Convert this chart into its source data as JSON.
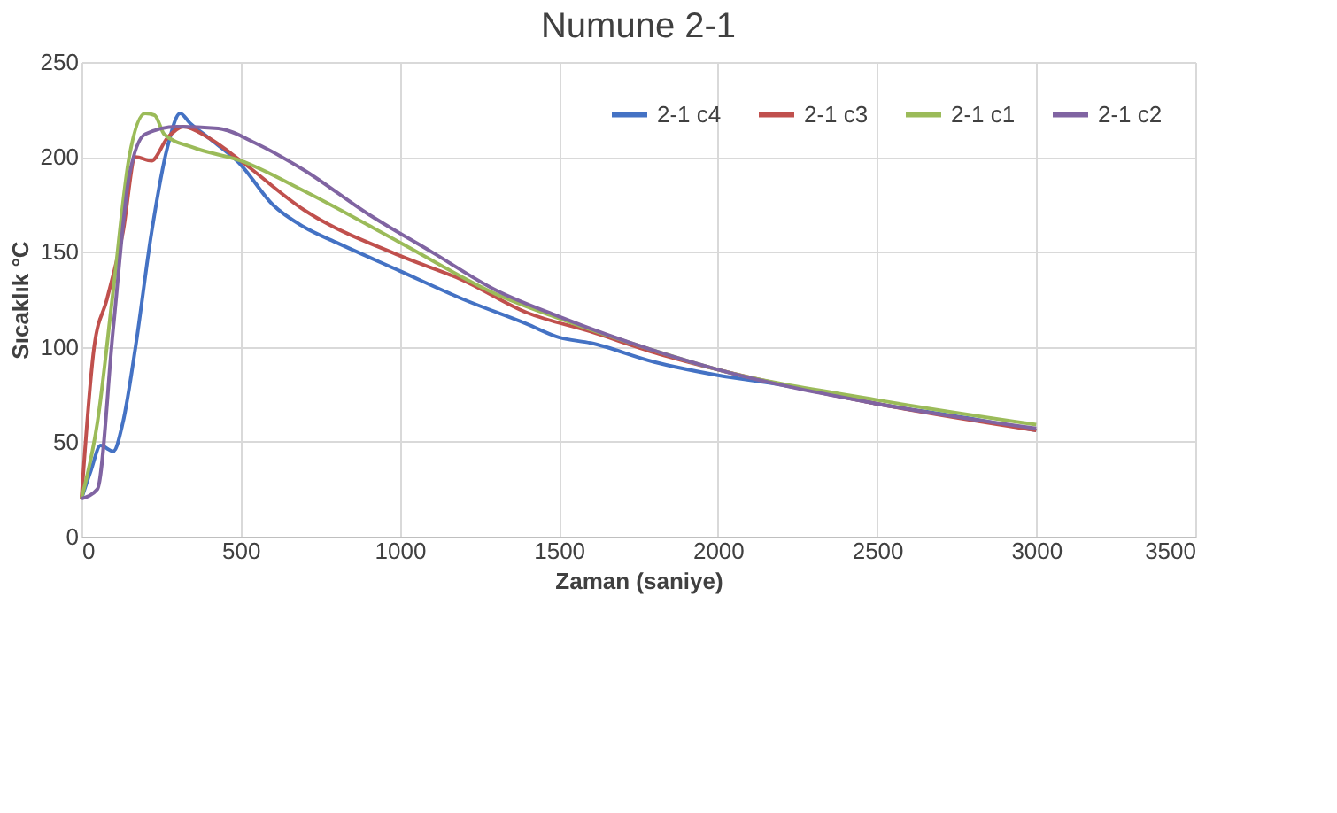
{
  "chart_data": {
    "type": "line",
    "title": "Numune 2-1",
    "xlabel": "Zaman  (saniye)",
    "ylabel": "Sıcaklık  °C",
    "xlim": [
      0,
      3500
    ],
    "xticks": [
      0,
      500,
      1000,
      1500,
      2000,
      2500,
      3000,
      3500
    ],
    "ylim": [
      0,
      250
    ],
    "yticks": [
      0,
      50,
      100,
      150,
      200,
      250
    ],
    "grid": true,
    "legend": "top right",
    "marker": "none",
    "line_style": "solid",
    "series": [
      {
        "name": "2-1 c4",
        "color": "#4472c4",
        "x": [
          0,
          30,
          60,
          100,
          130,
          170,
          220,
          270,
          310,
          340,
          400,
          500,
          600,
          700,
          800,
          1000,
          1200,
          1400,
          1500,
          1600,
          1800,
          2000,
          2200,
          2500,
          2800,
          3000
        ],
        "values": [
          20,
          35,
          48,
          45,
          60,
          100,
          160,
          205,
          223,
          218,
          210,
          196,
          175,
          163,
          155,
          140,
          125,
          112,
          105,
          102,
          92,
          85,
          80,
          70,
          62,
          56
        ]
      },
      {
        "name": "2-1 c3",
        "color": "#c0504d",
        "x": [
          0,
          40,
          80,
          130,
          170,
          220,
          270,
          320,
          400,
          500,
          700,
          1000,
          1200,
          1400,
          1600,
          1800,
          2000,
          2500,
          3000
        ],
        "values": [
          20,
          100,
          125,
          160,
          200,
          198,
          210,
          216,
          210,
          198,
          172,
          148,
          135,
          118,
          108,
          97,
          88,
          70,
          56
        ]
      },
      {
        "name": "2-1 c1",
        "color": "#9bbb59",
        "x": [
          0,
          50,
          100,
          150,
          200,
          230,
          260,
          350,
          500,
          700,
          1000,
          1300,
          1500,
          1800,
          2000,
          2500,
          3000
        ],
        "values": [
          20,
          60,
          130,
          200,
          223,
          222,
          212,
          205,
          198,
          182,
          155,
          128,
          115,
          98,
          88,
          72,
          59
        ]
      },
      {
        "name": "2-1 c2",
        "color": "#8064a2",
        "x": [
          0,
          50,
          100,
          150,
          200,
          300,
          430,
          550,
          700,
          900,
          1100,
          1300,
          1500,
          1800,
          2000,
          2500,
          3000
        ],
        "values": [
          20,
          25,
          110,
          190,
          212,
          216,
          215,
          207,
          193,
          170,
          150,
          130,
          116,
          98,
          88,
          70,
          57
        ]
      }
    ]
  }
}
